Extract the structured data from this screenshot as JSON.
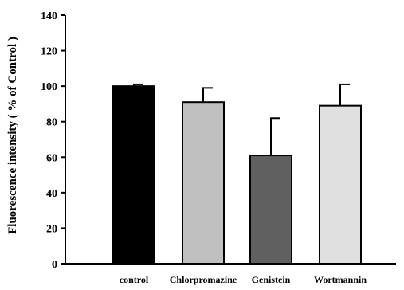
{
  "chart_data": {
    "type": "bar",
    "title": "",
    "xlabel": "",
    "ylabel": "Fluorescence intensity ( % of Control )",
    "categories": [
      "control",
      "Chlorpromazine",
      "Genistein",
      "Wortmannin"
    ],
    "values": [
      100,
      91,
      61,
      89
    ],
    "error_plus": [
      1,
      8,
      21,
      12
    ],
    "colors": [
      "#000000",
      "#c0c0c0",
      "#606060",
      "#e0e0e0"
    ],
    "ylim": [
      0,
      140
    ],
    "yticks": [
      0,
      20,
      40,
      60,
      80,
      100,
      120,
      140
    ],
    "grid": false,
    "legend": "none"
  }
}
